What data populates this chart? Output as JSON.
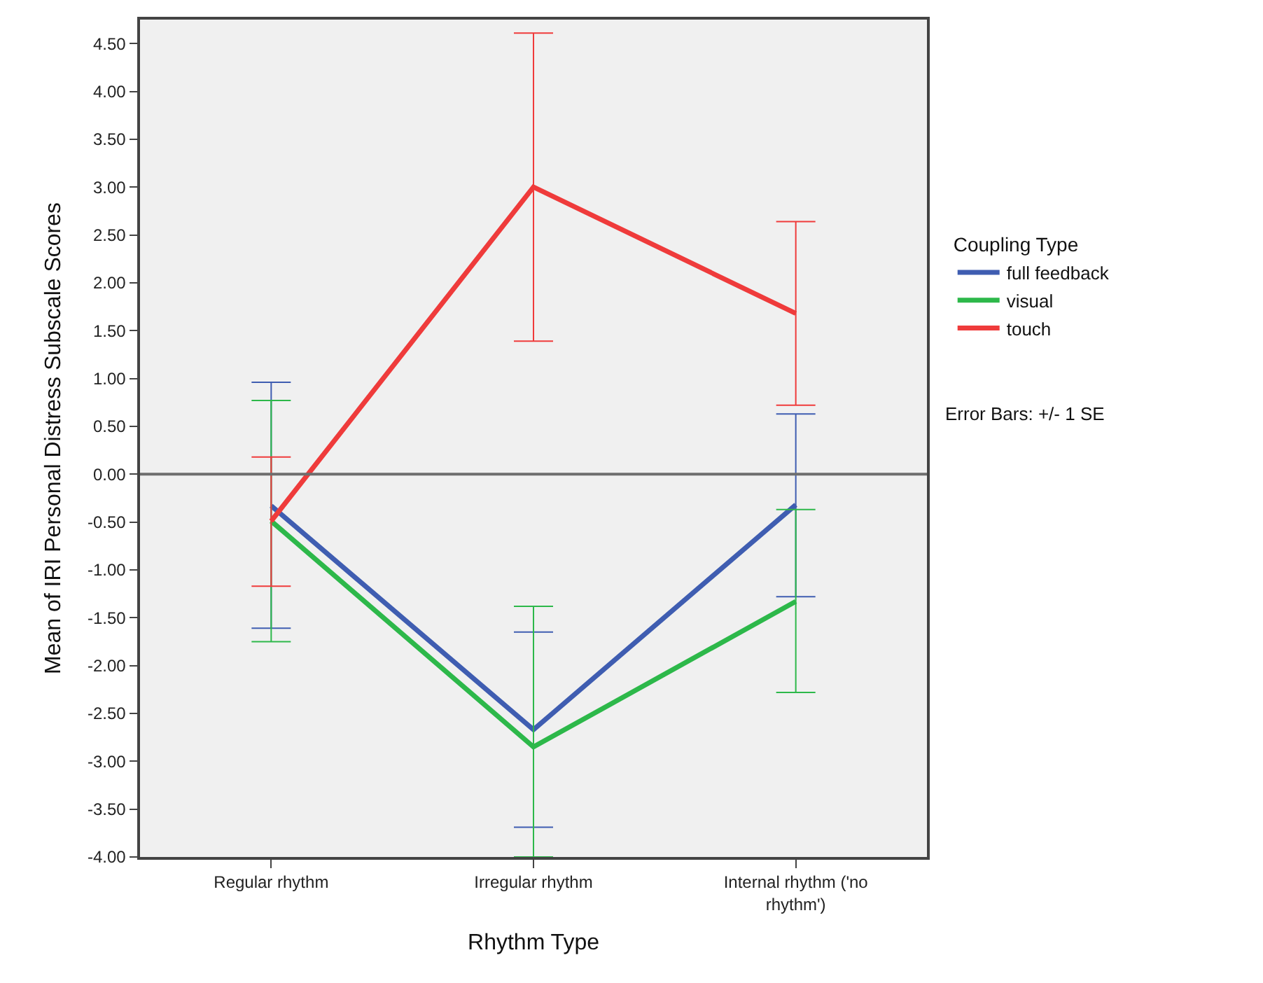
{
  "chart_data": {
    "type": "line",
    "xlabel": "Rhythm Type",
    "ylabel": "Mean of IRI Personal Distress Subscale Scores",
    "legend_title": "Coupling Type",
    "categories": [
      "Regular rhythm",
      "Irregular rhythm",
      "Internal rhythm ('no rhythm')"
    ],
    "series": [
      {
        "name": "full feedback",
        "color": "#3f5db1",
        "values": [
          -0.33,
          -2.67,
          -0.32
        ],
        "errors": [
          [
            -1.61,
            0.96
          ],
          [
            -3.69,
            -1.65
          ],
          [
            -1.28,
            0.63
          ]
        ]
      },
      {
        "name": "visual",
        "color": "#2db84a",
        "values": [
          -0.49,
          -2.85,
          -1.33
        ],
        "errors": [
          [
            -1.75,
            0.77
          ],
          [
            -4.0,
            -1.38
          ],
          [
            -2.28,
            -0.37
          ]
        ]
      },
      {
        "name": "touch",
        "color": "#ef3b3b",
        "values": [
          -0.49,
          3.0,
          1.68
        ],
        "errors": [
          [
            -1.17,
            0.18
          ],
          [
            1.39,
            4.61
          ],
          [
            0.72,
            2.64
          ]
        ]
      }
    ],
    "ylim": [
      -4.0,
      4.75
    ],
    "yticks": [
      {
        "value": 4.5,
        "label": "4.50"
      },
      {
        "value": 4.0,
        "label": "4.00"
      },
      {
        "value": 3.5,
        "label": "3.50"
      },
      {
        "value": 3.0,
        "label": "3.00"
      },
      {
        "value": 2.5,
        "label": "2.50"
      },
      {
        "value": 2.0,
        "label": "2.00"
      },
      {
        "value": 1.5,
        "label": "1.50"
      },
      {
        "value": 1.0,
        "label": "1.00"
      },
      {
        "value": 0.5,
        "label": "0.50"
      },
      {
        "value": 0.0,
        "label": "0.00"
      },
      {
        "value": -0.5,
        "label": "-0.50"
      },
      {
        "value": -1.0,
        "label": "-1.00"
      },
      {
        "value": -1.5,
        "label": "-1.50"
      },
      {
        "value": -2.0,
        "label": "-2.00"
      },
      {
        "value": -2.5,
        "label": "-2.50"
      },
      {
        "value": -3.0,
        "label": "-3.00"
      },
      {
        "value": -3.5,
        "label": "-3.50"
      },
      {
        "value": -4.0,
        "label": "-4.00"
      }
    ],
    "ref_lines": [
      {
        "axis": "y",
        "value": 0,
        "color": "#6e6e6e"
      }
    ],
    "annotations": [
      "Error Bars: +/- 1 SE"
    ],
    "legend": "right",
    "grid": false,
    "marker": "none",
    "line_style": "solid"
  }
}
